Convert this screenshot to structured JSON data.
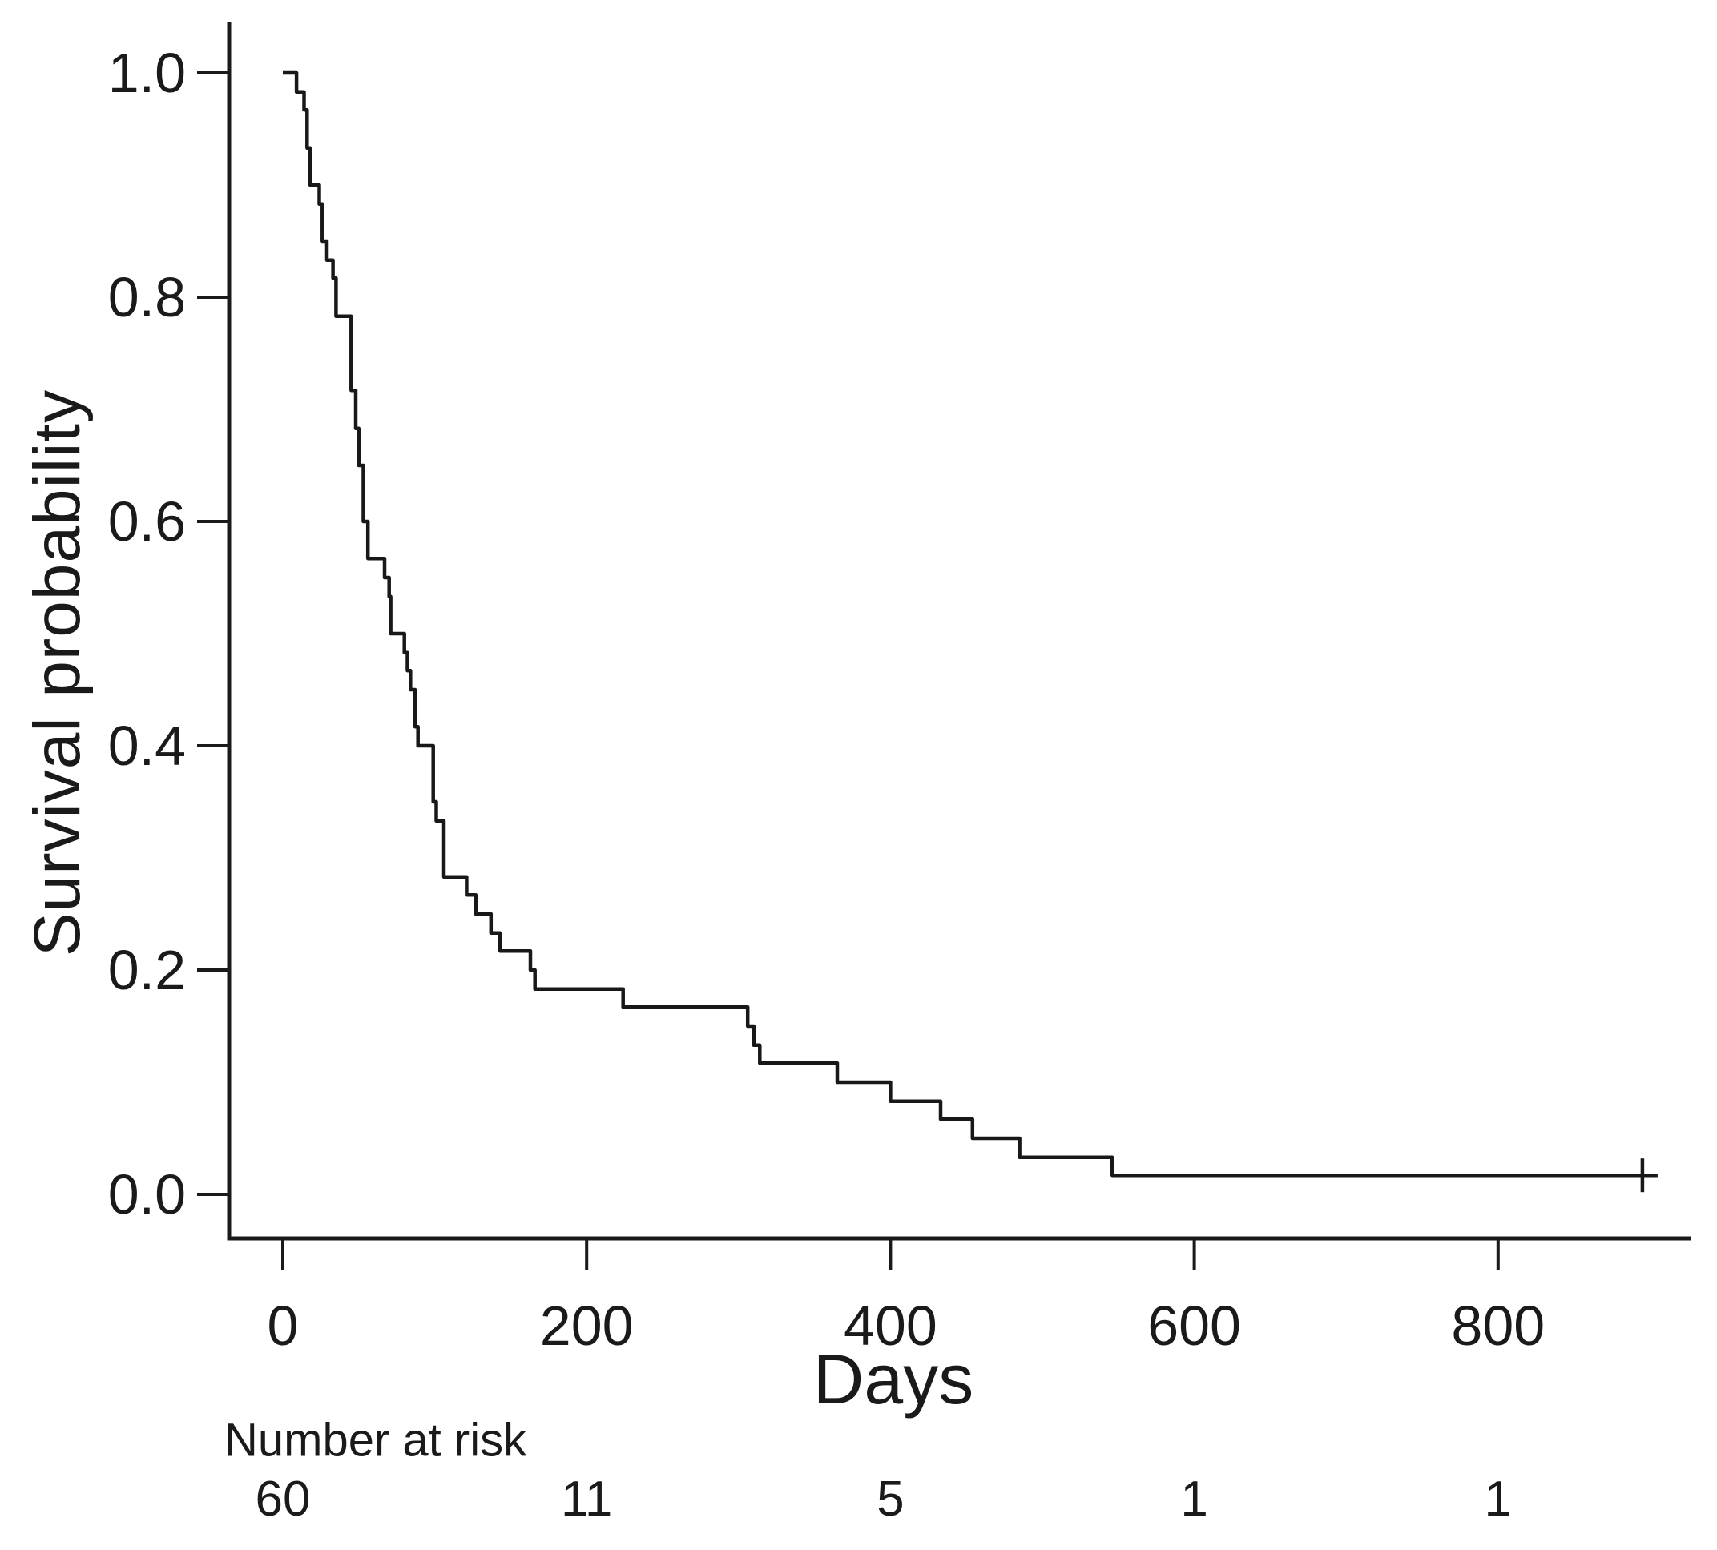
{
  "figure": {
    "background": "#ffffff",
    "ink_color": "#1a1a1a"
  },
  "chart_data": {
    "type": "line",
    "subtype": "kaplan-meier-step-curve",
    "title": "",
    "xlabel": "Days",
    "ylabel": "Survival probability",
    "grid": false,
    "legend_position": "none",
    "xlim": [
      -35,
      944
    ],
    "ylim": [
      0.0,
      1.0
    ],
    "x_ticks": [
      0,
      200,
      400,
      600,
      800
    ],
    "y_ticks": [
      {
        "value": 1.0,
        "label": "1.0"
      },
      {
        "value": 0.8,
        "label": "0.8"
      },
      {
        "value": 0.6,
        "label": "0.6"
      },
      {
        "value": 0.4,
        "label": "0.4"
      },
      {
        "value": 0.2,
        "label": "0.2"
      },
      {
        "value": 0.0,
        "label": "0.0"
      }
    ],
    "series": [
      {
        "steps_day_survival": [
          [
            0,
            1.0
          ],
          [
            9,
            0.983
          ],
          [
            14,
            0.967
          ],
          [
            16,
            0.933
          ],
          [
            18,
            0.9
          ],
          [
            24,
            0.883
          ],
          [
            26,
            0.85
          ],
          [
            29,
            0.833
          ],
          [
            33,
            0.817
          ],
          [
            35,
            0.783
          ],
          [
            45,
            0.717
          ],
          [
            48,
            0.683
          ],
          [
            50,
            0.65
          ],
          [
            53,
            0.6
          ],
          [
            56,
            0.567
          ],
          [
            67,
            0.55
          ],
          [
            70,
            0.533
          ],
          [
            71,
            0.5
          ],
          [
            80,
            0.483
          ],
          [
            82,
            0.467
          ],
          [
            84,
            0.45
          ],
          [
            87,
            0.417
          ],
          [
            89,
            0.4
          ],
          [
            99,
            0.35
          ],
          [
            101,
            0.333
          ],
          [
            106,
            0.283
          ],
          [
            121,
            0.267
          ],
          [
            127,
            0.25
          ],
          [
            137,
            0.233
          ],
          [
            143,
            0.217
          ],
          [
            163,
            0.2
          ],
          [
            166,
            0.183
          ],
          [
            224,
            0.167
          ],
          [
            306,
            0.15
          ],
          [
            310,
            0.133
          ],
          [
            314,
            0.117
          ],
          [
            365,
            0.1
          ],
          [
            400,
            0.083
          ],
          [
            433,
            0.067
          ],
          [
            454,
            0.05
          ],
          [
            485,
            0.033
          ],
          [
            546,
            0.017
          ]
        ],
        "end_day": 905,
        "censor_marks_day_survival": [
          [
            895,
            0.017
          ]
        ]
      }
    ]
  },
  "risk_table": {
    "label": "Number at risk",
    "times": [
      0,
      200,
      400,
      600,
      800
    ],
    "counts": [
      "60",
      "11",
      "5",
      "1",
      "1"
    ]
  }
}
